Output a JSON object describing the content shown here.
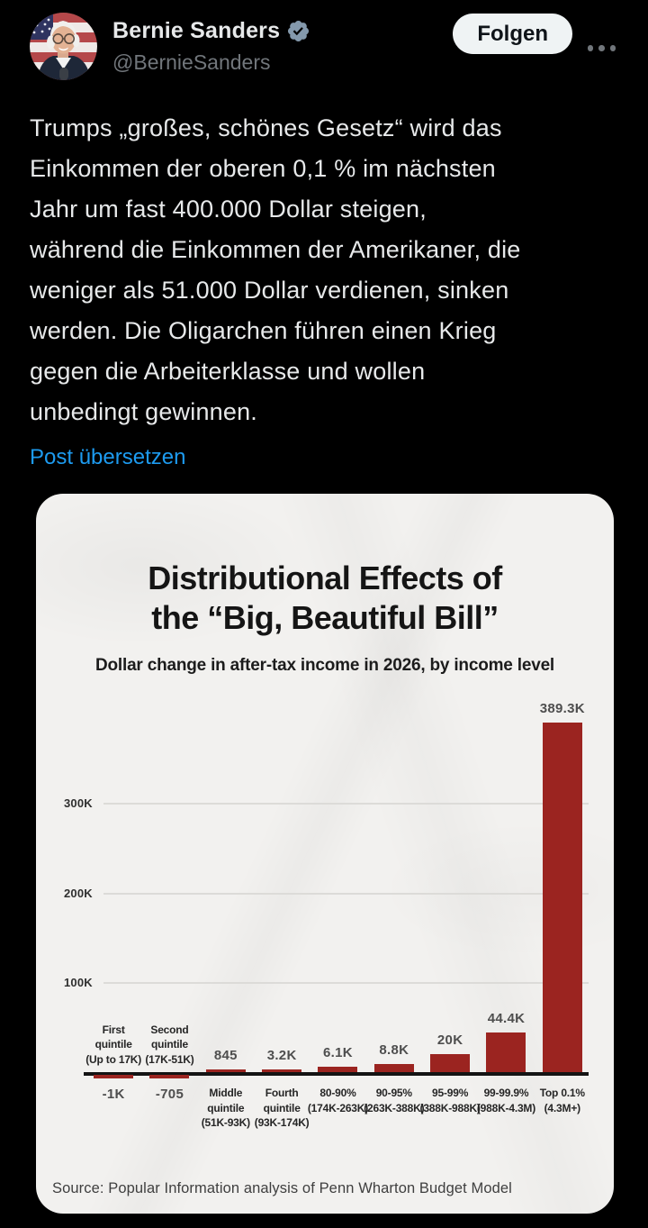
{
  "header": {
    "display_name": "Bernie Sanders",
    "handle": "@BernieSanders",
    "follow_label": "Folgen",
    "verified_badge_color": "#8499ac"
  },
  "tweet": {
    "text": "Trumps „großes, schönes Gesetz“ wird das\nEinkommen der oberen 0,1 % im nächsten\nJahr um fast 400.000 Dollar steigen,\nwährend die Einkommen der Amerikaner, die\nweniger als 51.000 Dollar verdienen, sinken\nwerden. Die Oligarchen führen einen Krieg\ngegen die Arbeiterklasse und wollen\nunbedingt gewinnen.",
    "translate_label": "Post übersetzen",
    "link_color": "#1d9bf0"
  },
  "colors": {
    "page_background": "#000000",
    "text_primary": "#e7e9ea",
    "text_secondary": "#71767b",
    "follow_button_bg": "#eff3f4",
    "follow_button_text": "#0f1419",
    "card_background": "#f2f1ef"
  },
  "chart_data": {
    "type": "bar",
    "title": "Distributional Effects of\nthe “Big, Beautiful Bill”",
    "subtitle": "Dollar change in after-tax income in 2026, by income level",
    "source": "Source: Popular Information analysis of Penn Wharton Budget Model",
    "bar_color": "#9b2420",
    "categories": [
      "First\nquintile\n(Up to 17K)",
      "Second\nquintile\n(17K-51K)",
      "Middle\nquintile\n(51K-93K)",
      "Fourth\nquintile\n(93K-174K)",
      "80-90%\n(174K-263K)",
      "90-95%\n(263K-388K)",
      "95-99%\n(388K-988K)",
      "99-99.9%\n(988K-4.3M)",
      "Top 0.1%\n(4.3M+)"
    ],
    "values": [
      -1000,
      -705,
      845,
      3200,
      6100,
      8800,
      20000,
      44400,
      389300
    ],
    "value_labels": [
      "-1K",
      "-705",
      "845",
      "3.2K",
      "6.1K",
      "8.8K",
      "20K",
      "44.4K",
      "389.3K"
    ],
    "y_ticks": [
      {
        "label": "100K",
        "value": 100000
      },
      {
        "label": "200K",
        "value": 200000
      },
      {
        "label": "300K",
        "value": 300000
      }
    ],
    "ylim": [
      -2000,
      400000
    ],
    "grid": "horizontal",
    "legend": "none"
  }
}
